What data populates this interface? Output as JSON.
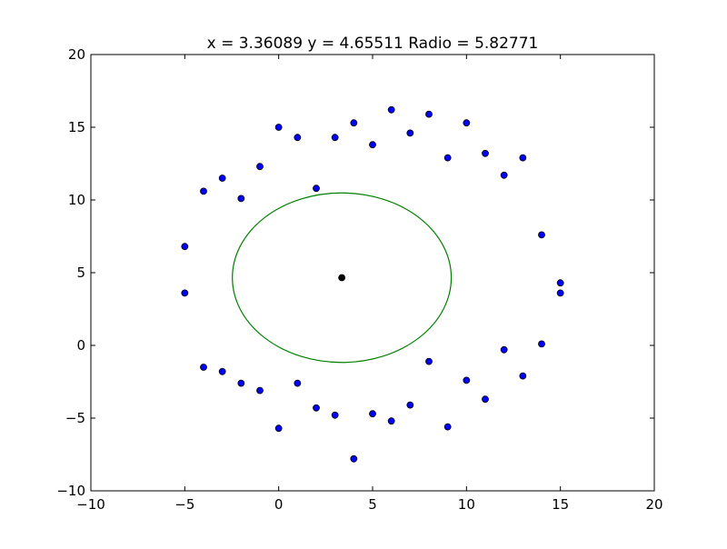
{
  "chart_data": {
    "type": "scatter",
    "title": "x = 3.36089 y = 4.65511 Radio = 5.82771",
    "xlabel": "",
    "ylabel": "",
    "xlim": [
      -10,
      20
    ],
    "ylim": [
      -10,
      20
    ],
    "x_ticks": [
      -10,
      -5,
      0,
      5,
      10,
      15,
      20
    ],
    "y_ticks": [
      -10,
      -5,
      0,
      5,
      10,
      15,
      20
    ],
    "x_tick_labels": [
      "−10",
      "−5",
      "0",
      "5",
      "10",
      "15",
      "20"
    ],
    "y_tick_labels": [
      "−10",
      "−5",
      "0",
      "5",
      "10",
      "15",
      "20"
    ],
    "grid": false,
    "legend": "none",
    "points_color": "#0000ff",
    "circle_color": "#008000",
    "center_color": "#000000",
    "points": [
      {
        "x": 0,
        "y": 15.0
      },
      {
        "x": 1,
        "y": 14.3
      },
      {
        "x": 3,
        "y": 14.3
      },
      {
        "x": 4,
        "y": 15.3
      },
      {
        "x": 6,
        "y": 16.2
      },
      {
        "x": 8,
        "y": 15.9
      },
      {
        "x": 10,
        "y": 15.3
      },
      {
        "x": 7,
        "y": 14.6
      },
      {
        "x": 5,
        "y": 13.8
      },
      {
        "x": 9,
        "y": 12.9
      },
      {
        "x": 11,
        "y": 13.2
      },
      {
        "x": 13,
        "y": 12.9
      },
      {
        "x": 12,
        "y": 11.7
      },
      {
        "x": -1,
        "y": 12.3
      },
      {
        "x": -3,
        "y": 11.5
      },
      {
        "x": -4,
        "y": 10.6
      },
      {
        "x": -2,
        "y": 10.1
      },
      {
        "x": 2,
        "y": 10.8
      },
      {
        "x": 14,
        "y": 7.6
      },
      {
        "x": 15,
        "y": 4.3
      },
      {
        "x": 15,
        "y": 3.6
      },
      {
        "x": -5,
        "y": 6.8
      },
      {
        "x": -5,
        "y": 3.6
      },
      {
        "x": 14,
        "y": 0.1
      },
      {
        "x": 12,
        "y": -0.3
      },
      {
        "x": 8,
        "y": -1.1
      },
      {
        "x": 10,
        "y": -2.4
      },
      {
        "x": 13,
        "y": -2.1
      },
      {
        "x": 11,
        "y": -3.7
      },
      {
        "x": -4,
        "y": -1.5
      },
      {
        "x": -3,
        "y": -1.8
      },
      {
        "x": -2,
        "y": -2.6
      },
      {
        "x": -1,
        "y": -3.1
      },
      {
        "x": 1,
        "y": -2.6
      },
      {
        "x": 2,
        "y": -4.3
      },
      {
        "x": 3,
        "y": -4.8
      },
      {
        "x": 5,
        "y": -4.7
      },
      {
        "x": 6,
        "y": -5.2
      },
      {
        "x": 7,
        "y": -4.1
      },
      {
        "x": 0,
        "y": -5.7
      },
      {
        "x": 9,
        "y": -5.6
      },
      {
        "x": 4,
        "y": -7.8
      }
    ],
    "center": {
      "x": 3.36089,
      "y": 4.65511
    },
    "radius": 5.82771
  }
}
